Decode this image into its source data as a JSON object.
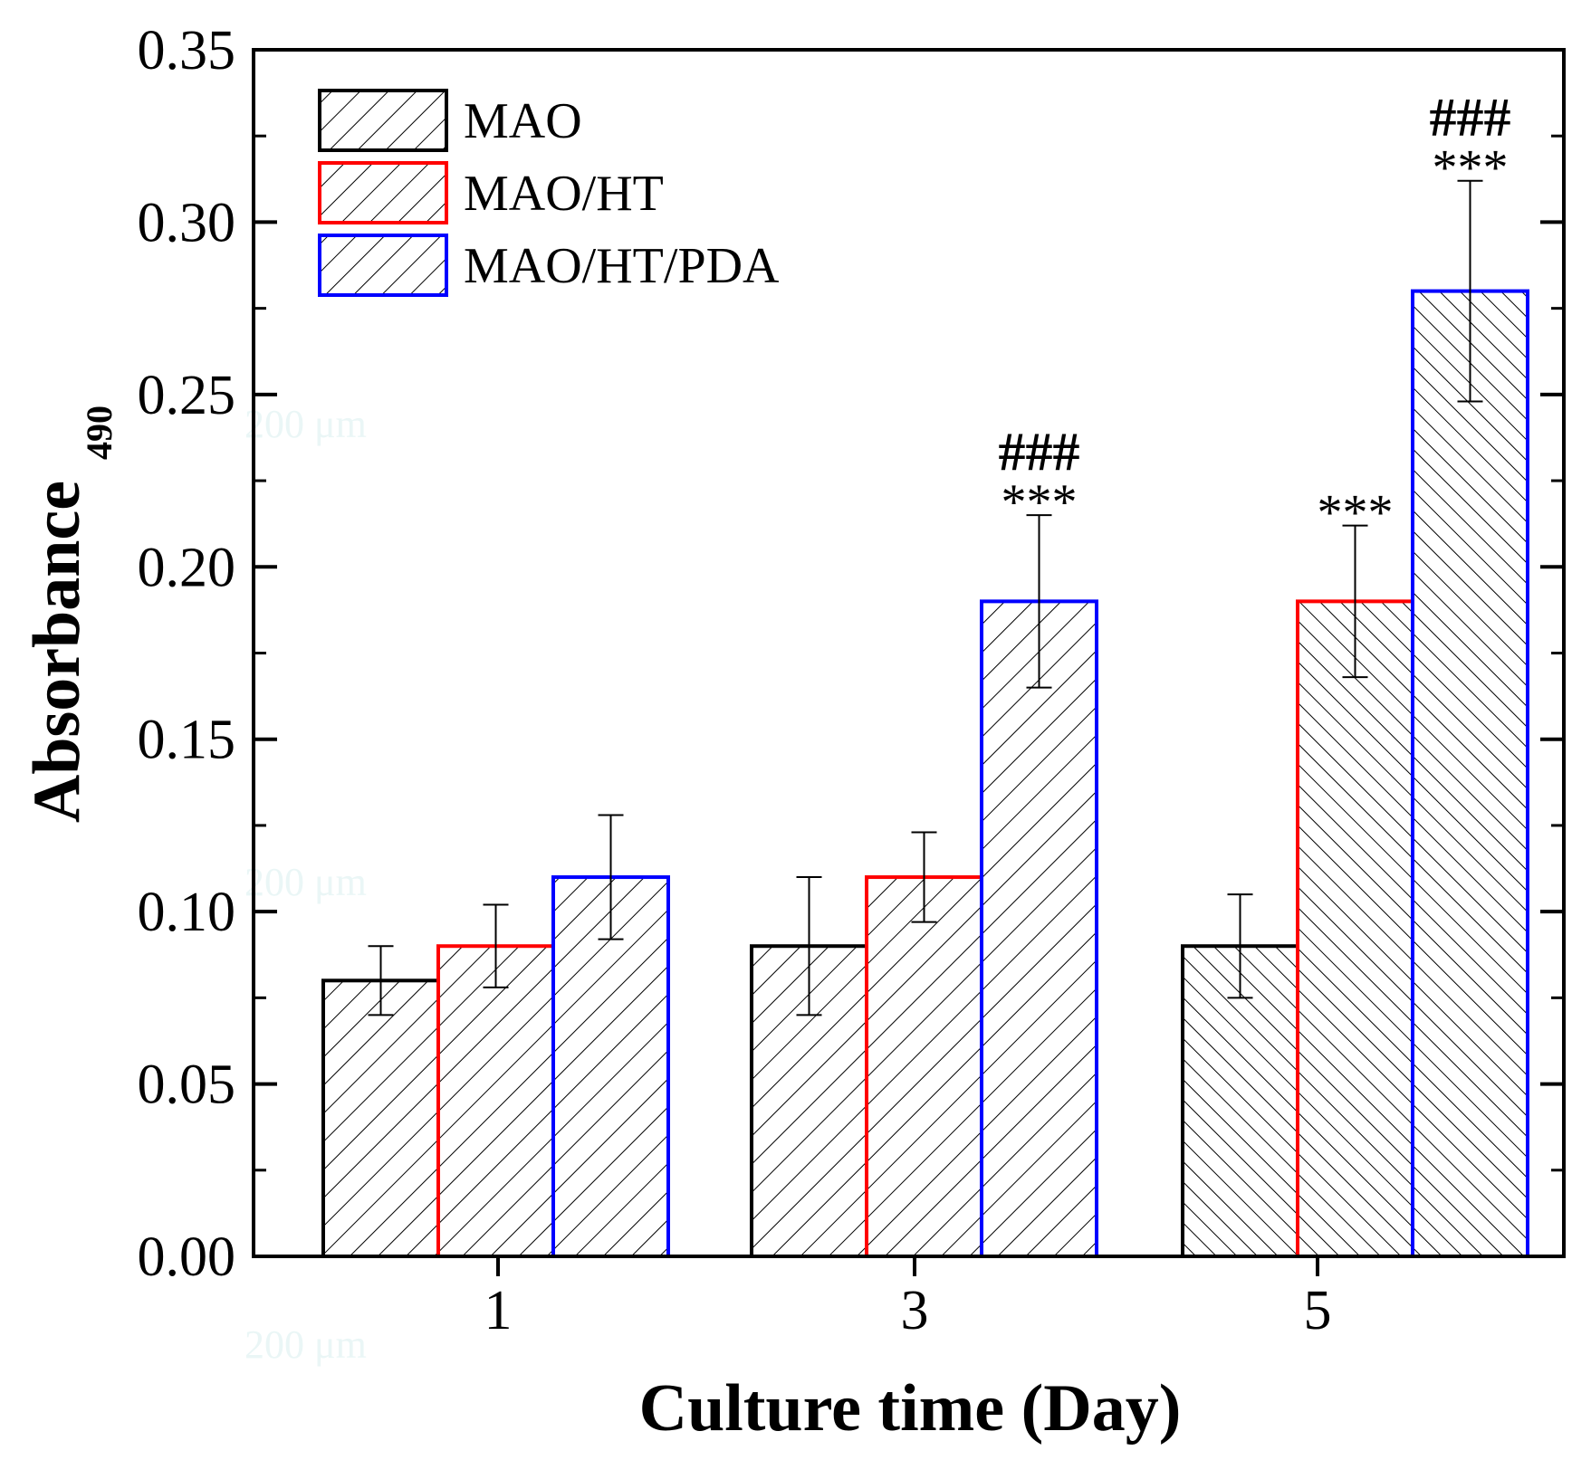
{
  "chart_data": {
    "type": "bar",
    "xlabel": "Culture time (Day)",
    "ylabel": "Absorbance",
    "ylabel_subscript": "490",
    "ylim": [
      0,
      0.35
    ],
    "yticks": [
      "0.00",
      "0.05",
      "0.10",
      "0.15",
      "0.20",
      "0.25",
      "0.30",
      "0.35"
    ],
    "categories": [
      "1",
      "3",
      "5"
    ],
    "series": [
      {
        "name": "MAO",
        "color": "#000000",
        "values": [
          0.08,
          0.09,
          0.09
        ],
        "errors": [
          0.01,
          0.02,
          0.015
        ]
      },
      {
        "name": "MAO/HT",
        "color": "#ff0000",
        "values": [
          0.09,
          0.11,
          0.19
        ],
        "errors": [
          0.012,
          0.013,
          0.022
        ]
      },
      {
        "name": "MAO/HT/PDA",
        "color": "#0000ff",
        "values": [
          0.11,
          0.19,
          0.28
        ],
        "errors": [
          0.018,
          0.025,
          0.032
        ]
      }
    ],
    "annotations": [
      {
        "category": "3",
        "series": "MAO/HT/PDA",
        "stars": "***",
        "hashes": "###"
      },
      {
        "category": "5",
        "series": "MAO/HT",
        "stars": "***",
        "hashes": ""
      },
      {
        "category": "5",
        "series": "MAO/HT/PDA",
        "stars": "***",
        "hashes": "###"
      }
    ],
    "legend_position": "top-left",
    "grid": false
  },
  "watermark_text": "200 μm"
}
